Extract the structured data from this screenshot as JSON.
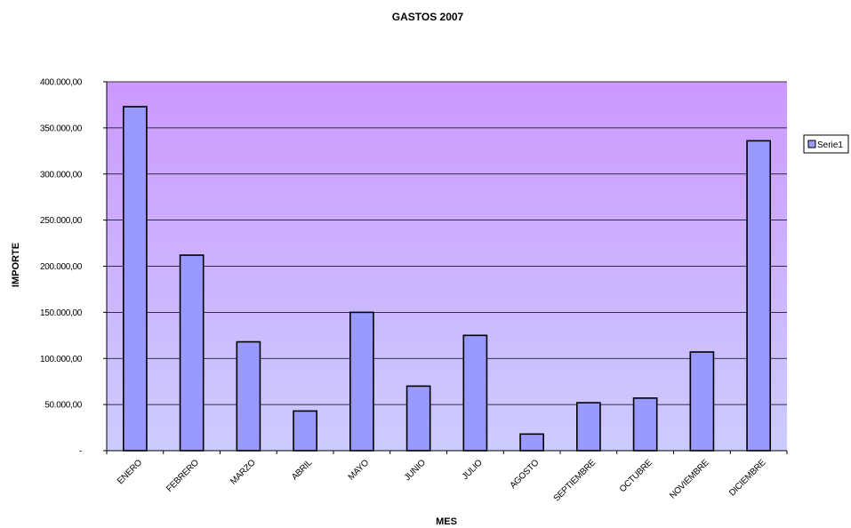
{
  "chart_data": {
    "type": "bar",
    "title": "GASTOS 2007",
    "xlabel": "MES",
    "ylabel": "IMPORTE",
    "categories": [
      "ENERO",
      "FEBRERO",
      "MARZO",
      "ABRIL",
      "MAYO",
      "JUNIO",
      "JULIO",
      "AGOSTO",
      "SEPTIEMBRE",
      "OCTUBRE",
      "NOVIEMBRE",
      "DICIEMBRE"
    ],
    "series": [
      {
        "name": "Serie1",
        "values": [
          373000,
          212000,
          118000,
          43000,
          150000,
          70000,
          125000,
          18000,
          52000,
          57000,
          107000,
          336000
        ]
      }
    ],
    "ylim": [
      0,
      400000
    ],
    "y_ticks": [
      0,
      50000,
      100000,
      150000,
      200000,
      250000,
      300000,
      350000,
      400000
    ],
    "y_tick_labels": [
      "-",
      "50.000,00",
      "100.000,00",
      "150.000,00",
      "200.000,00",
      "250.000,00",
      "300.000,00",
      "350.000,00",
      "400.000,00"
    ],
    "grid": true,
    "legend_position": "right",
    "colors": {
      "bar_fill": "#9999ff",
      "bar_stroke": "#000000",
      "plot_bg_top": "#cc99ff",
      "plot_bg_bottom": "#ccccff",
      "gridline": "#000000"
    }
  }
}
